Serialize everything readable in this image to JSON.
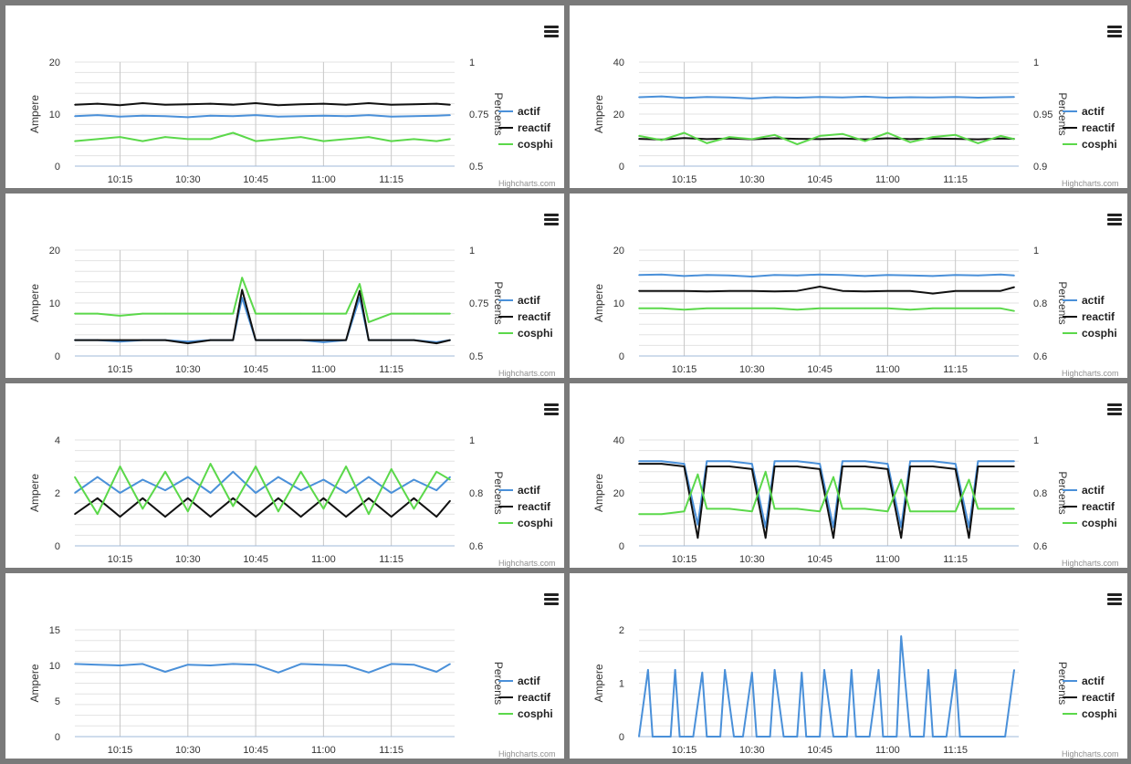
{
  "ui": {
    "left_axis_title": "Ampere",
    "right_axis_title": "Percents",
    "credit": "Highcharts.com"
  },
  "legend": [
    {
      "label": "actif",
      "color": "#4a90d9"
    },
    {
      "label": "reactif",
      "color": "#111111"
    },
    {
      "label": "cosphi",
      "color": "#5bd84a"
    }
  ],
  "chart_data": [
    {
      "type": "line",
      "x": [
        "10:05",
        "10:10",
        "10:15",
        "10:20",
        "10:25",
        "10:30",
        "10:35",
        "10:40",
        "10:45",
        "10:50",
        "10:55",
        "11:00",
        "11:05",
        "11:10",
        "11:15",
        "11:20",
        "11:25",
        "11:28"
      ],
      "xticks": [
        "10:15",
        "10:30",
        "10:45",
        "11:00",
        "11:15"
      ],
      "ylim": [
        0,
        20
      ],
      "yticks": [
        "0",
        "10",
        "20"
      ],
      "y2lim": [
        0.5,
        1.0
      ],
      "y2ticks": [
        "0.5",
        "0.75",
        "1"
      ],
      "ylabel": "Ampere",
      "y2label": "Percents",
      "series": [
        {
          "name": "actif",
          "axis": "left",
          "values": [
            9.6,
            9.8,
            9.5,
            9.7,
            9.6,
            9.4,
            9.7,
            9.6,
            9.8,
            9.5,
            9.6,
            9.7,
            9.6,
            9.8,
            9.5,
            9.6,
            9.7,
            9.8
          ]
        },
        {
          "name": "reactif",
          "axis": "left",
          "values": [
            11.8,
            12.0,
            11.7,
            12.1,
            11.8,
            11.9,
            12.0,
            11.8,
            12.1,
            11.7,
            11.9,
            12.0,
            11.8,
            12.1,
            11.8,
            11.9,
            12.0,
            11.8
          ]
        },
        {
          "name": "cosphi",
          "axis": "right",
          "values": [
            0.62,
            0.63,
            0.64,
            0.62,
            0.64,
            0.63,
            0.63,
            0.66,
            0.62,
            0.63,
            0.64,
            0.62,
            0.63,
            0.64,
            0.62,
            0.63,
            0.62,
            0.63
          ]
        }
      ]
    },
    {
      "type": "line",
      "x": [
        "10:05",
        "10:10",
        "10:15",
        "10:20",
        "10:25",
        "10:30",
        "10:35",
        "10:40",
        "10:45",
        "10:50",
        "10:55",
        "11:00",
        "11:05",
        "11:10",
        "11:15",
        "11:20",
        "11:25",
        "11:28"
      ],
      "xticks": [
        "10:15",
        "10:30",
        "10:45",
        "11:00",
        "11:15"
      ],
      "ylim": [
        0,
        40
      ],
      "yticks": [
        "0",
        "20",
        "40"
      ],
      "y2lim": [
        0.9,
        1.0
      ],
      "y2ticks": [
        "0.9",
        "0.95",
        "1"
      ],
      "ylabel": "Ampere",
      "y2label": "Percents",
      "series": [
        {
          "name": "actif",
          "axis": "left",
          "values": [
            26.5,
            26.8,
            26.2,
            26.6,
            26.4,
            26.0,
            26.5,
            26.3,
            26.6,
            26.4,
            26.7,
            26.3,
            26.5,
            26.4,
            26.6,
            26.3,
            26.5,
            26.6
          ]
        },
        {
          "name": "reactif",
          "axis": "left",
          "values": [
            10.5,
            10.2,
            10.8,
            10.4,
            10.6,
            10.3,
            10.7,
            10.5,
            10.4,
            10.6,
            10.3,
            10.7,
            10.4,
            10.6,
            10.5,
            10.3,
            10.6,
            10.5
          ]
        },
        {
          "name": "cosphi",
          "axis": "right",
          "values": [
            0.929,
            0.925,
            0.932,
            0.922,
            0.928,
            0.926,
            0.93,
            0.921,
            0.929,
            0.931,
            0.924,
            0.932,
            0.923,
            0.928,
            0.93,
            0.922,
            0.929,
            0.926
          ]
        }
      ]
    },
    {
      "type": "line",
      "x": [
        "10:05",
        "10:10",
        "10:15",
        "10:20",
        "10:25",
        "10:30",
        "10:35",
        "10:40",
        "10:42",
        "10:45",
        "10:50",
        "10:55",
        "11:00",
        "11:05",
        "11:08",
        "11:10",
        "11:15",
        "11:20",
        "11:25",
        "11:28"
      ],
      "xticks": [
        "10:15",
        "10:30",
        "10:45",
        "11:00",
        "11:15"
      ],
      "ylim": [
        0,
        20
      ],
      "yticks": [
        "0",
        "10",
        "20"
      ],
      "y2lim": [
        0.5,
        1.0
      ],
      "y2ticks": [
        "0.5",
        "0.75",
        "1"
      ],
      "ylabel": "Ampere",
      "y2label": "Percents",
      "series": [
        {
          "name": "actif",
          "axis": "left",
          "values": [
            3.0,
            3.0,
            2.7,
            3.0,
            3.0,
            2.7,
            3.0,
            3.0,
            11.0,
            3.0,
            3.0,
            3.0,
            2.6,
            3.0,
            11.0,
            3.0,
            3.0,
            3.0,
            2.6,
            3.0
          ]
        },
        {
          "name": "reactif",
          "axis": "left",
          "values": [
            3.0,
            3.0,
            3.0,
            3.0,
            3.0,
            2.4,
            3.0,
            3.0,
            12.5,
            3.0,
            3.0,
            3.0,
            3.0,
            3.0,
            12.3,
            3.0,
            3.0,
            3.0,
            2.4,
            3.0
          ]
        },
        {
          "name": "cosphi",
          "axis": "right",
          "values": [
            0.7,
            0.7,
            0.69,
            0.7,
            0.7,
            0.7,
            0.7,
            0.7,
            0.87,
            0.7,
            0.7,
            0.7,
            0.7,
            0.7,
            0.84,
            0.66,
            0.7,
            0.7,
            0.7,
            0.7
          ]
        }
      ]
    },
    {
      "type": "line",
      "x": [
        "10:05",
        "10:10",
        "10:15",
        "10:20",
        "10:25",
        "10:30",
        "10:35",
        "10:40",
        "10:45",
        "10:50",
        "10:55",
        "11:00",
        "11:05",
        "11:10",
        "11:15",
        "11:20",
        "11:25",
        "11:28"
      ],
      "xticks": [
        "10:15",
        "10:30",
        "10:45",
        "11:00",
        "11:15"
      ],
      "ylim": [
        0,
        20
      ],
      "yticks": [
        "0",
        "10",
        "20"
      ],
      "y2lim": [
        0.6,
        1.0
      ],
      "y2ticks": [
        "0.6",
        "0.8",
        "1"
      ],
      "ylabel": "Ampere",
      "y2label": "Percents",
      "series": [
        {
          "name": "actif",
          "axis": "left",
          "values": [
            15.3,
            15.4,
            15.1,
            15.3,
            15.2,
            15.0,
            15.3,
            15.2,
            15.4,
            15.3,
            15.1,
            15.3,
            15.2,
            15.1,
            15.3,
            15.2,
            15.4,
            15.2
          ]
        },
        {
          "name": "reactif",
          "axis": "left",
          "values": [
            12.3,
            12.3,
            12.3,
            12.2,
            12.3,
            12.3,
            12.2,
            12.3,
            13.1,
            12.3,
            12.2,
            12.3,
            12.3,
            11.8,
            12.3,
            12.3,
            12.3,
            13.0
          ]
        },
        {
          "name": "cosphi",
          "axis": "right",
          "values": [
            0.78,
            0.78,
            0.775,
            0.78,
            0.78,
            0.78,
            0.78,
            0.775,
            0.78,
            0.78,
            0.78,
            0.78,
            0.775,
            0.78,
            0.78,
            0.78,
            0.78,
            0.77
          ]
        }
      ]
    },
    {
      "type": "line",
      "x": [
        "10:05",
        "10:10",
        "10:15",
        "10:20",
        "10:25",
        "10:30",
        "10:35",
        "10:40",
        "10:45",
        "10:50",
        "10:55",
        "11:00",
        "11:05",
        "11:10",
        "11:15",
        "11:20",
        "11:25",
        "11:28"
      ],
      "xticks": [
        "10:15",
        "10:30",
        "10:45",
        "11:00",
        "11:15"
      ],
      "ylim": [
        0,
        4
      ],
      "yticks": [
        "0",
        "2",
        "4"
      ],
      "y2lim": [
        0.6,
        1.0
      ],
      "y2ticks": [
        "0.6",
        "0.8",
        "1"
      ],
      "ylabel": "Ampere",
      "y2label": "Percents",
      "series": [
        {
          "name": "actif",
          "axis": "left",
          "values": [
            2.0,
            2.6,
            2.0,
            2.5,
            2.1,
            2.6,
            2.0,
            2.8,
            2.0,
            2.6,
            2.1,
            2.5,
            2.0,
            2.6,
            2.0,
            2.5,
            2.1,
            2.6
          ]
        },
        {
          "name": "reactif",
          "axis": "left",
          "values": [
            1.2,
            1.8,
            1.1,
            1.8,
            1.1,
            1.8,
            1.1,
            1.8,
            1.1,
            1.8,
            1.1,
            1.8,
            1.1,
            1.8,
            1.1,
            1.8,
            1.1,
            1.7
          ]
        },
        {
          "name": "cosphi",
          "axis": "right",
          "values": [
            0.86,
            0.72,
            0.9,
            0.74,
            0.88,
            0.73,
            0.91,
            0.75,
            0.9,
            0.73,
            0.88,
            0.74,
            0.9,
            0.72,
            0.89,
            0.74,
            0.88,
            0.85
          ]
        }
      ]
    },
    {
      "type": "line",
      "x": [
        "10:05",
        "10:10",
        "10:15",
        "10:18",
        "10:20",
        "10:25",
        "10:30",
        "10:33",
        "10:35",
        "10:40",
        "10:45",
        "10:48",
        "10:50",
        "10:55",
        "11:00",
        "11:03",
        "11:05",
        "11:10",
        "11:15",
        "11:18",
        "11:20",
        "11:28"
      ],
      "xticks": [
        "10:15",
        "10:30",
        "10:45",
        "11:00",
        "11:15"
      ],
      "ylim": [
        0,
        40
      ],
      "yticks": [
        "0",
        "20",
        "40"
      ],
      "y2lim": [
        0.6,
        1.0
      ],
      "y2ticks": [
        "0.6",
        "0.8",
        "1"
      ],
      "ylabel": "Ampere",
      "y2label": "Percents",
      "series": [
        {
          "name": "actif",
          "axis": "left",
          "values": [
            32,
            32,
            31,
            8,
            32,
            32,
            31,
            7,
            32,
            32,
            31,
            7,
            32,
            32,
            31,
            7,
            32,
            32,
            31,
            7,
            32,
            32
          ]
        },
        {
          "name": "reactif",
          "axis": "left",
          "values": [
            31,
            31,
            30,
            3,
            30,
            30,
            29,
            3,
            30,
            30,
            29,
            3,
            30,
            30,
            29,
            3,
            30,
            30,
            29,
            3,
            30,
            30
          ]
        },
        {
          "name": "cosphi",
          "axis": "right",
          "values": [
            0.72,
            0.72,
            0.73,
            0.87,
            0.74,
            0.74,
            0.73,
            0.88,
            0.74,
            0.74,
            0.73,
            0.86,
            0.74,
            0.74,
            0.73,
            0.85,
            0.73,
            0.73,
            0.73,
            0.85,
            0.74,
            0.74
          ]
        }
      ]
    },
    {
      "type": "line",
      "x": [
        "10:05",
        "10:10",
        "10:15",
        "10:20",
        "10:25",
        "10:30",
        "10:35",
        "10:40",
        "10:45",
        "10:50",
        "10:55",
        "11:00",
        "11:05",
        "11:10",
        "11:15",
        "11:20",
        "11:25",
        "11:28"
      ],
      "xticks": [
        "10:15",
        "10:30",
        "10:45",
        "11:00",
        "11:15"
      ],
      "ylim": [
        0,
        15
      ],
      "yticks": [
        "0",
        "5",
        "10",
        "15"
      ],
      "ylabel": "Ampere",
      "y2label": "Percents",
      "series": [
        {
          "name": "actif",
          "axis": "left",
          "values": [
            10.2,
            10.1,
            10.0,
            10.2,
            9.1,
            10.1,
            10.0,
            10.2,
            10.1,
            9.0,
            10.2,
            10.1,
            10.0,
            9.0,
            10.2,
            10.1,
            9.1,
            10.2
          ]
        }
      ]
    },
    {
      "type": "line",
      "x": [
        "10:05",
        "10:07",
        "10:08",
        "10:12",
        "10:13",
        "10:14",
        "10:17",
        "10:19",
        "10:20",
        "10:23",
        "10:24",
        "10:26",
        "10:28",
        "10:30",
        "10:31",
        "10:34",
        "10:35",
        "10:37",
        "10:40",
        "10:41",
        "10:42",
        "10:45",
        "10:46",
        "10:48",
        "10:51",
        "10:52",
        "10:53",
        "10:56",
        "10:58",
        "10:59",
        "11:02",
        "11:03",
        "11:05",
        "11:08",
        "11:09",
        "11:10",
        "11:13",
        "11:15",
        "11:16",
        "11:19",
        "11:21",
        "11:22",
        "11:26",
        "11:28"
      ],
      "xticks": [
        "10:15",
        "10:30",
        "10:45",
        "11:00",
        "11:15"
      ],
      "ylim": [
        0,
        2
      ],
      "yticks": [
        "0",
        "1",
        "2"
      ],
      "ylabel": "Ampere",
      "y2label": "Percents",
      "series": [
        {
          "name": "actif",
          "axis": "left",
          "values": [
            0,
            1.25,
            0,
            0,
            1.25,
            0,
            0,
            1.2,
            0,
            0,
            1.25,
            0,
            0,
            1.2,
            0,
            0,
            1.25,
            0,
            0,
            1.2,
            0,
            0,
            1.25,
            0,
            0,
            1.25,
            0,
            0,
            1.25,
            0,
            0,
            1.88,
            0,
            0,
            1.25,
            0,
            0,
            1.25,
            0,
            0,
            0,
            0,
            0,
            1.25
          ]
        }
      ]
    }
  ]
}
